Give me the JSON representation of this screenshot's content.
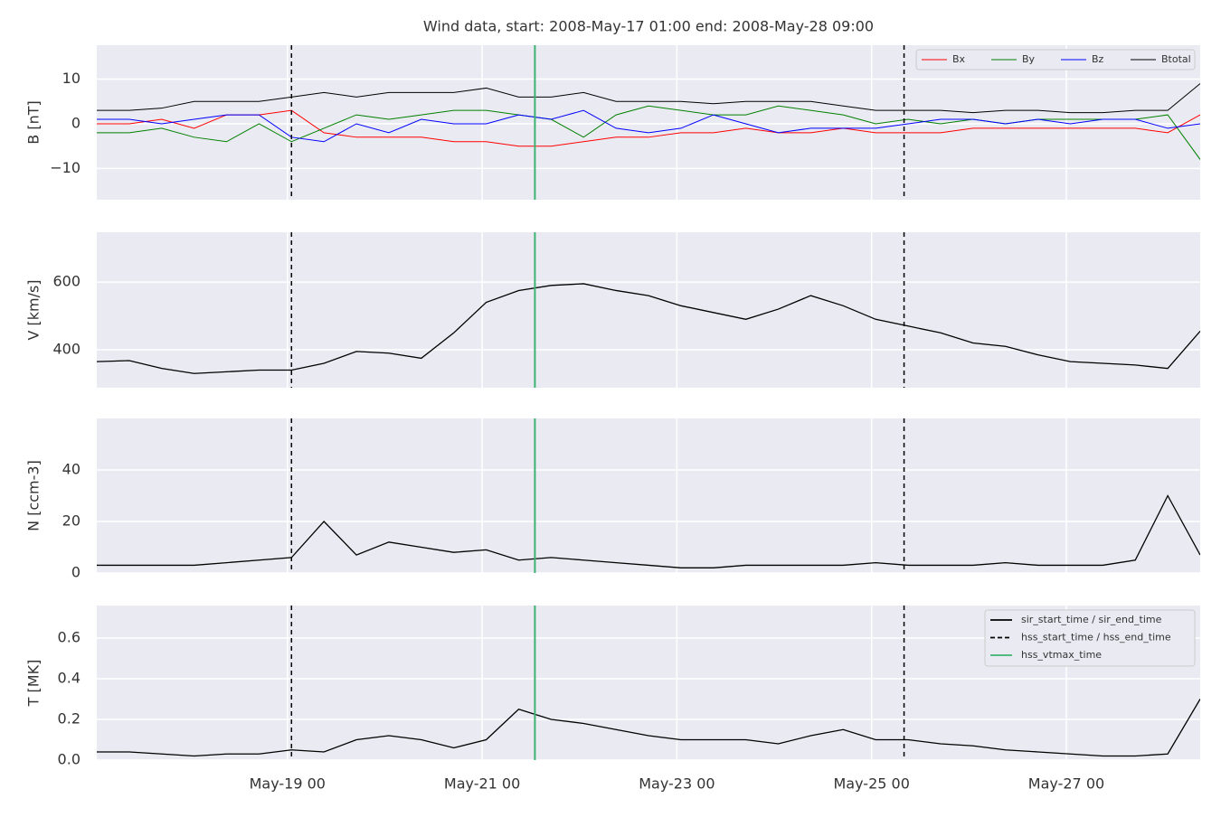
{
  "title": "Wind data, start: 2008-May-17 01:00  end: 2008-May-28 09:00",
  "chart_data": [
    {
      "type": "line",
      "ylabel": "B [nT]",
      "legend": "upper right",
      "grid": true,
      "x": [
        "May-17 01",
        "May-17 09",
        "May-17 17",
        "May-18 01",
        "May-18 09",
        "May-18 17",
        "May-19 01",
        "May-19 09",
        "May-19 17",
        "May-20 01",
        "May-20 09",
        "May-20 17",
        "May-21 01",
        "May-21 09",
        "May-21 17",
        "May-22 01",
        "May-22 09",
        "May-22 17",
        "May-23 01",
        "May-23 09",
        "May-23 17",
        "May-24 01",
        "May-24 09",
        "May-24 17",
        "May-25 01",
        "May-25 09",
        "May-25 17",
        "May-26 01",
        "May-26 09",
        "May-26 17",
        "May-27 01",
        "May-27 09",
        "May-27 17",
        "May-28 01",
        "May-28 09"
      ],
      "xlim": [
        "May-17 01",
        "May-28 09"
      ],
      "xticks": [
        "May-19 00",
        "May-21 00",
        "May-23 00",
        "May-25 00",
        "May-27 00"
      ],
      "ylim": [
        -17,
        17.6
      ],
      "yticks": [
        {
          "value": -10,
          "label": "−10"
        },
        0,
        10
      ],
      "series": [
        {
          "name": "Bx",
          "color": "#ff0000",
          "values": [
            0,
            0,
            1,
            -1,
            2,
            2,
            3,
            -2,
            -3,
            -3,
            -3,
            -4,
            -4,
            -5,
            -5,
            -4,
            -3,
            -3,
            -2,
            -2,
            -1,
            -2,
            -2,
            -1,
            -2,
            -2,
            -2,
            -1,
            -1,
            -1,
            -1,
            -1,
            -1,
            -2,
            2
          ]
        },
        {
          "name": "By",
          "color": "#008000",
          "values": [
            -2,
            -2,
            -1,
            -3,
            -4,
            0,
            -4,
            -1,
            2,
            1,
            2,
            3,
            3,
            2,
            1,
            -3,
            2,
            4,
            3,
            2,
            2,
            4,
            3,
            2,
            0,
            1,
            0,
            1,
            0,
            1,
            1,
            1,
            1,
            2,
            -8
          ]
        },
        {
          "name": "Bz",
          "color": "#0000ff",
          "values": [
            1,
            1,
            0,
            1,
            2,
            2,
            -3,
            -4,
            0,
            -2,
            1,
            0,
            0,
            2,
            1,
            3,
            -1,
            -2,
            -1,
            2,
            0,
            -2,
            -1,
            -1,
            -1,
            0,
            1,
            1,
            0,
            1,
            0,
            1,
            1,
            -1,
            0
          ]
        },
        {
          "name": "Btotal",
          "color": "#000000",
          "values": [
            3,
            3,
            3.5,
            5,
            5,
            5,
            6,
            7,
            6,
            7,
            7,
            7,
            8,
            6,
            6,
            7,
            5,
            5,
            5,
            4.5,
            5,
            5,
            5,
            4,
            3,
            3,
            3,
            2.5,
            3,
            3,
            2.5,
            2.5,
            3,
            3,
            9
          ]
        }
      ]
    },
    {
      "type": "line",
      "ylabel": "V [km/s]",
      "grid": true,
      "color": "#000000",
      "x": [
        "May-17 01",
        "May-17 09",
        "May-17 17",
        "May-18 01",
        "May-18 09",
        "May-18 17",
        "May-19 01",
        "May-19 09",
        "May-19 17",
        "May-20 01",
        "May-20 09",
        "May-20 17",
        "May-21 01",
        "May-21 09",
        "May-21 17",
        "May-22 01",
        "May-22 09",
        "May-22 17",
        "May-23 01",
        "May-23 09",
        "May-23 17",
        "May-24 01",
        "May-24 09",
        "May-24 17",
        "May-25 01",
        "May-25 09",
        "May-25 17",
        "May-26 01",
        "May-26 09",
        "May-26 17",
        "May-27 01",
        "May-27 09",
        "May-27 17",
        "May-28 01",
        "May-28 09"
      ],
      "xlim": [
        "May-17 01",
        "May-28 09"
      ],
      "xticks": [
        "May-19 00",
        "May-21 00",
        "May-23 00",
        "May-25 00",
        "May-27 00"
      ],
      "ylim": [
        288,
        747
      ],
      "yticks": [
        400,
        600
      ],
      "values": [
        365,
        368,
        345,
        330,
        335,
        340,
        340,
        360,
        395,
        390,
        375,
        450,
        540,
        575,
        590,
        595,
        575,
        560,
        530,
        510,
        490,
        520,
        560,
        530,
        490,
        470,
        450,
        420,
        410,
        385,
        365,
        360,
        355,
        345,
        455
      ]
    },
    {
      "type": "line",
      "ylabel": "N [ccm-3]",
      "grid": true,
      "color": "#000000",
      "x": [
        "May-17 01",
        "May-17 09",
        "May-17 17",
        "May-18 01",
        "May-18 09",
        "May-18 17",
        "May-19 01",
        "May-19 09",
        "May-19 17",
        "May-20 01",
        "May-20 09",
        "May-20 17",
        "May-21 01",
        "May-21 09",
        "May-21 17",
        "May-22 01",
        "May-22 09",
        "May-22 17",
        "May-23 01",
        "May-23 09",
        "May-23 17",
        "May-24 01",
        "May-24 09",
        "May-24 17",
        "May-25 01",
        "May-25 09",
        "May-25 17",
        "May-26 01",
        "May-26 09",
        "May-26 17",
        "May-27 01",
        "May-27 09",
        "May-27 17",
        "May-28 01",
        "May-28 09"
      ],
      "xlim": [
        "May-17 01",
        "May-28 09"
      ],
      "xticks": [
        "May-19 00",
        "May-21 00",
        "May-23 00",
        "May-25 00",
        "May-27 00"
      ],
      "ylim": [
        0,
        60
      ],
      "yticks": [
        0,
        20,
        40
      ],
      "values": [
        3,
        3,
        3,
        3,
        4,
        5,
        6,
        20,
        7,
        12,
        10,
        8,
        9,
        5,
        6,
        5,
        4,
        3,
        2,
        2,
        3,
        3,
        3,
        3,
        4,
        3,
        3,
        3,
        4,
        3,
        3,
        3,
        5,
        30,
        7
      ]
    },
    {
      "type": "line",
      "ylabel": "T [MK]",
      "grid": true,
      "color": "#000000",
      "legend": "upper right",
      "x": [
        "May-17 01",
        "May-17 09",
        "May-17 17",
        "May-18 01",
        "May-18 09",
        "May-18 17",
        "May-19 01",
        "May-19 09",
        "May-19 17",
        "May-20 01",
        "May-20 09",
        "May-20 17",
        "May-21 01",
        "May-21 09",
        "May-21 17",
        "May-22 01",
        "May-22 09",
        "May-22 17",
        "May-23 01",
        "May-23 09",
        "May-23 17",
        "May-24 01",
        "May-24 09",
        "May-24 17",
        "May-25 01",
        "May-25 09",
        "May-25 17",
        "May-26 01",
        "May-26 09",
        "May-26 17",
        "May-27 01",
        "May-27 09",
        "May-27 17",
        "May-28 01",
        "May-28 09"
      ],
      "xlim": [
        "May-17 01",
        "May-28 09"
      ],
      "xticks": [
        "May-19 00",
        "May-21 00",
        "May-23 00",
        "May-25 00",
        "May-27 00"
      ],
      "ylim": [
        0,
        0.76
      ],
      "yticks": [
        {
          "value": 0,
          "label": "0.0"
        },
        0.2,
        0.4,
        0.6
      ],
      "values": [
        0.04,
        0.04,
        0.03,
        0.02,
        0.03,
        0.03,
        0.05,
        0.04,
        0.1,
        0.12,
        0.1,
        0.06,
        0.1,
        0.25,
        0.2,
        0.18,
        0.15,
        0.12,
        0.1,
        0.1,
        0.1,
        0.08,
        0.12,
        0.15,
        0.1,
        0.1,
        0.08,
        0.07,
        0.05,
        0.04,
        0.03,
        0.02,
        0.02,
        0.03,
        0.3
      ],
      "events": [
        {
          "name": "sir_start_time / sir_end_time",
          "color": "#000000",
          "style": "solid",
          "times": []
        },
        {
          "name": "hss_start_time / hss_end_time",
          "color": "#000000",
          "style": "dashed",
          "times": [
            "May-19 01",
            "May-25 08"
          ]
        },
        {
          "name": "hss_vtmax_time",
          "color": "#3cb371",
          "style": "solid",
          "times": [
            "May-21 13"
          ]
        }
      ]
    }
  ]
}
